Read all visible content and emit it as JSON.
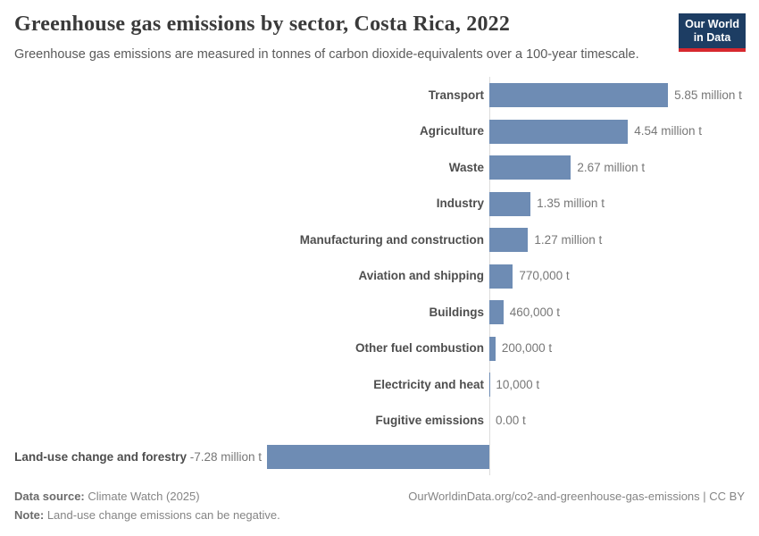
{
  "header": {
    "title": "Greenhouse gas emissions by sector, Costa Rica, 2022",
    "subtitle": "Greenhouse gas emissions are measured in tonnes of carbon dioxide-equivalents over a 100-year timescale.",
    "logo": {
      "line1": "Our World",
      "line2": "in Data",
      "bg_color": "#1d3d63",
      "accent_color": "#d7282e"
    }
  },
  "chart_data": {
    "type": "bar",
    "orientation": "horizontal",
    "title": "Greenhouse gas emissions by sector, Costa Rica, 2022",
    "xlabel": "",
    "ylabel": "",
    "unit": "tonnes of carbon dioxide-equivalents",
    "grid": "off",
    "legend": "none",
    "xlim_million_t": [
      -7.28,
      5.85
    ],
    "zero_axis_line": true,
    "categories": [
      "Transport",
      "Agriculture",
      "Waste",
      "Industry",
      "Manufacturing and construction",
      "Aviation and shipping",
      "Buildings",
      "Other fuel combustion",
      "Electricity and heat",
      "Fugitive emissions",
      "Land-use change and forestry"
    ],
    "values_million_t": [
      5.85,
      4.54,
      2.67,
      1.35,
      1.27,
      0.77,
      0.46,
      0.2,
      0.01,
      0.0,
      -7.28
    ],
    "value_labels": [
      "5.85 million t",
      "4.54 million t",
      "2.67 million t",
      "1.35 million t",
      "1.27 million t",
      "770,000 t",
      "460,000 t",
      "200,000 t",
      "10,000 t",
      "0.00 t",
      "-7.28 million t"
    ],
    "bar_color": "#6e8cb4",
    "category_label_color": "#4e4e4e",
    "value_label_color": "#777777"
  },
  "footer": {
    "data_source_label": "Data source:",
    "data_source_value": " Climate Watch (2025)",
    "note_label": "Note:",
    "note_value": " Land-use change emissions can be negative.",
    "link": "OurWorldinData.org/co2-and-greenhouse-gas-emissions | CC BY"
  }
}
